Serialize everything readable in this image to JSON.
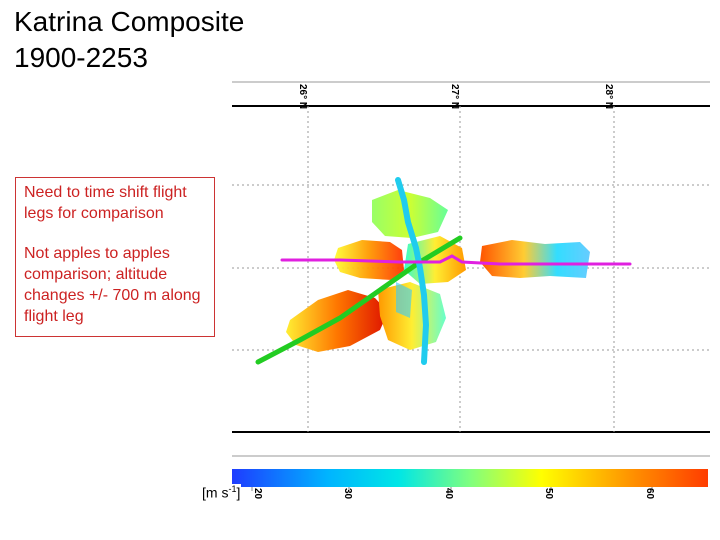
{
  "title": "Katrina Composite\n1900-2253",
  "notes": [
    "Need to time shift flight legs for comparison",
    "Not apples to apples comparison; altitude changes +/- 700 m along flight leg"
  ],
  "map": {
    "lat_labels": [
      "26° N",
      "27° N",
      "28° N"
    ]
  },
  "colorbar": {
    "unit_label": "[m s",
    "unit_exponent": "-1",
    "unit_close": "]",
    "ticks": [
      "20",
      "30",
      "40",
      "50",
      "60"
    ],
    "colors": [
      "#1e3cff",
      "#00b4ff",
      "#00e6e6",
      "#7fff7f",
      "#ffff00",
      "#ff8c00",
      "#ff3c00"
    ]
  },
  "flight_tracks": {
    "magenta_color": "#e020e0",
    "green_color": "#22cc22",
    "cyan_color": "#20ccee"
  }
}
